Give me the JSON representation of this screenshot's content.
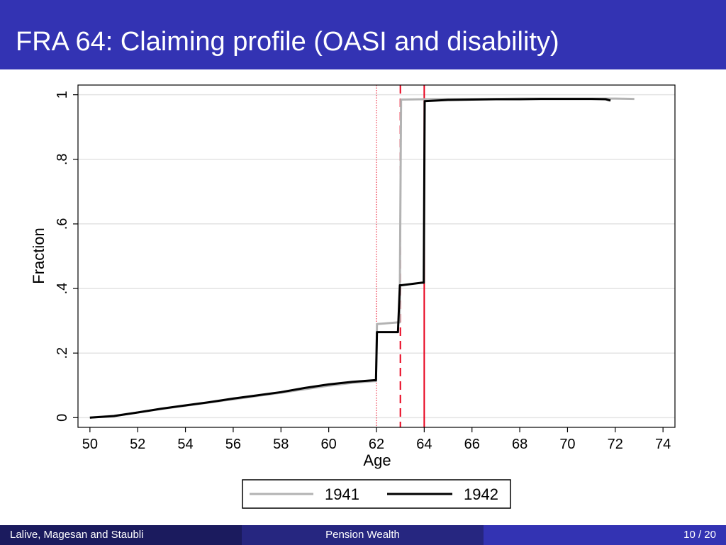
{
  "slide": {
    "title": "FRA 64: Claiming profile (OASI and disability)"
  },
  "footer": {
    "authors": "Lalive, Magesan and Staubli",
    "topic": "Pension Wealth",
    "page": "10 / 20"
  },
  "colors": {
    "title_bar": "#3333b3",
    "footer_left": "#1b1b5e",
    "footer_mid": "#262680",
    "footer_right": "#3333b3",
    "series_1941": "#b3b3b3",
    "series_1942": "#000000",
    "vline": "#e8001c"
  },
  "chart_data": {
    "type": "line",
    "xlabel": "Age",
    "ylabel": "Fraction",
    "xlim": [
      49.5,
      74.5
    ],
    "ylim": [
      -0.03,
      1.03
    ],
    "xticks": [
      50,
      52,
      54,
      56,
      58,
      60,
      62,
      64,
      66,
      68,
      70,
      72,
      74
    ],
    "xtick_labels": [
      "50",
      "52",
      "54",
      "56",
      "58",
      "60",
      "62",
      "64",
      "66",
      "68",
      "70",
      "72",
      "74"
    ],
    "yticks": [
      0,
      0.2,
      0.4,
      0.6,
      0.8,
      1
    ],
    "ytick_labels": [
      "0",
      ".2",
      ".4",
      ".6",
      ".8",
      "1"
    ],
    "grid": true,
    "legend_position": "bottom",
    "vertical_lines": [
      {
        "x": 62,
        "style": "dotted"
      },
      {
        "x": 63,
        "style": "dashed"
      },
      {
        "x": 64,
        "style": "solid"
      }
    ],
    "series": [
      {
        "name": "1941",
        "x": [
          50,
          51,
          52,
          53,
          54,
          55,
          56,
          57,
          58,
          59,
          60,
          61,
          61.9,
          61.98,
          62.02,
          62.9,
          62.97,
          63.03,
          64,
          65,
          66,
          67,
          68,
          69,
          70,
          71,
          72,
          72.8
        ],
        "y": [
          0.0,
          0.006,
          0.016,
          0.027,
          0.037,
          0.047,
          0.057,
          0.067,
          0.077,
          0.088,
          0.099,
          0.108,
          0.113,
          0.113,
          0.29,
          0.295,
          0.295,
          0.985,
          0.986,
          0.987,
          0.987,
          0.987,
          0.988,
          0.988,
          0.988,
          0.988,
          0.988,
          0.987
        ]
      },
      {
        "name": "1942",
        "x": [
          50,
          51,
          52,
          53,
          54,
          55,
          56,
          57,
          58,
          59,
          60,
          61,
          61.9,
          61.98,
          62.02,
          62.9,
          62.98,
          63.04,
          63.9,
          63.98,
          64.02,
          65,
          66,
          67,
          68,
          69,
          70,
          71,
          71.6,
          71.8
        ],
        "y": [
          0.0,
          0.005,
          0.016,
          0.028,
          0.038,
          0.048,
          0.059,
          0.069,
          0.079,
          0.092,
          0.103,
          0.111,
          0.116,
          0.116,
          0.265,
          0.265,
          0.41,
          0.41,
          0.418,
          0.418,
          0.98,
          0.984,
          0.985,
          0.986,
          0.986,
          0.987,
          0.987,
          0.987,
          0.986,
          0.982
        ]
      }
    ]
  }
}
